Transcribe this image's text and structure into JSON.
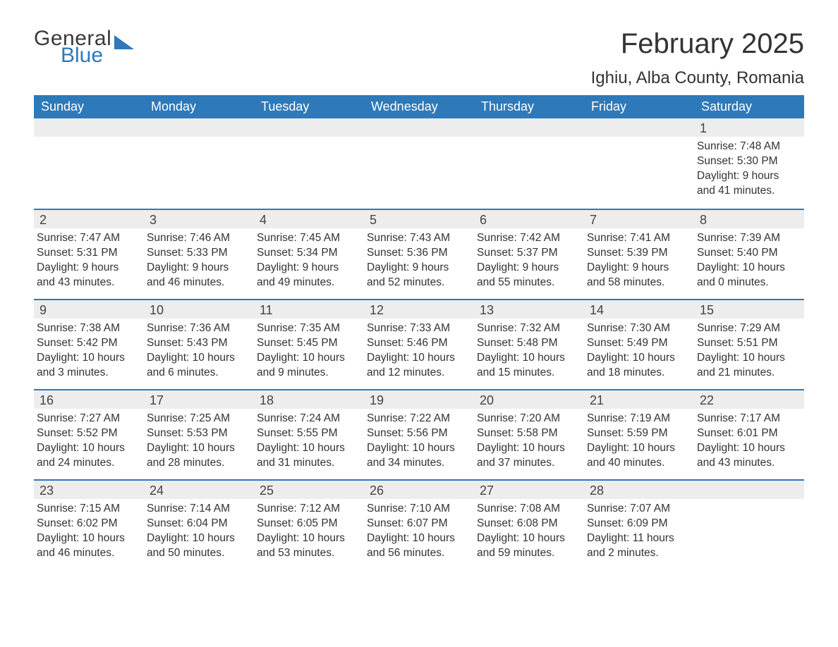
{
  "brand": {
    "word1": "General",
    "word2": "Blue"
  },
  "title": "February 2025",
  "location": "Ighiu, Alba County, Romania",
  "colors": {
    "header_bg": "#2e79b9",
    "header_text": "#ffffff",
    "daynum_bg": "#ededed",
    "row_divider": "#2e79b9",
    "body_text": "#333333",
    "page_bg": "#ffffff"
  },
  "typography": {
    "title_fontsize": 40,
    "location_fontsize": 24,
    "weekday_fontsize": 18,
    "daynum_fontsize": 18,
    "body_fontsize": 15.5
  },
  "weekdays": [
    "Sunday",
    "Monday",
    "Tuesday",
    "Wednesday",
    "Thursday",
    "Friday",
    "Saturday"
  ],
  "weeks": [
    [
      null,
      null,
      null,
      null,
      null,
      null,
      {
        "n": "1",
        "sunrise": "Sunrise: 7:48 AM",
        "sunset": "Sunset: 5:30 PM",
        "dl1": "Daylight: 9 hours",
        "dl2": "and 41 minutes."
      }
    ],
    [
      {
        "n": "2",
        "sunrise": "Sunrise: 7:47 AM",
        "sunset": "Sunset: 5:31 PM",
        "dl1": "Daylight: 9 hours",
        "dl2": "and 43 minutes."
      },
      {
        "n": "3",
        "sunrise": "Sunrise: 7:46 AM",
        "sunset": "Sunset: 5:33 PM",
        "dl1": "Daylight: 9 hours",
        "dl2": "and 46 minutes."
      },
      {
        "n": "4",
        "sunrise": "Sunrise: 7:45 AM",
        "sunset": "Sunset: 5:34 PM",
        "dl1": "Daylight: 9 hours",
        "dl2": "and 49 minutes."
      },
      {
        "n": "5",
        "sunrise": "Sunrise: 7:43 AM",
        "sunset": "Sunset: 5:36 PM",
        "dl1": "Daylight: 9 hours",
        "dl2": "and 52 minutes."
      },
      {
        "n": "6",
        "sunrise": "Sunrise: 7:42 AM",
        "sunset": "Sunset: 5:37 PM",
        "dl1": "Daylight: 9 hours",
        "dl2": "and 55 minutes."
      },
      {
        "n": "7",
        "sunrise": "Sunrise: 7:41 AM",
        "sunset": "Sunset: 5:39 PM",
        "dl1": "Daylight: 9 hours",
        "dl2": "and 58 minutes."
      },
      {
        "n": "8",
        "sunrise": "Sunrise: 7:39 AM",
        "sunset": "Sunset: 5:40 PM",
        "dl1": "Daylight: 10 hours",
        "dl2": "and 0 minutes."
      }
    ],
    [
      {
        "n": "9",
        "sunrise": "Sunrise: 7:38 AM",
        "sunset": "Sunset: 5:42 PM",
        "dl1": "Daylight: 10 hours",
        "dl2": "and 3 minutes."
      },
      {
        "n": "10",
        "sunrise": "Sunrise: 7:36 AM",
        "sunset": "Sunset: 5:43 PM",
        "dl1": "Daylight: 10 hours",
        "dl2": "and 6 minutes."
      },
      {
        "n": "11",
        "sunrise": "Sunrise: 7:35 AM",
        "sunset": "Sunset: 5:45 PM",
        "dl1": "Daylight: 10 hours",
        "dl2": "and 9 minutes."
      },
      {
        "n": "12",
        "sunrise": "Sunrise: 7:33 AM",
        "sunset": "Sunset: 5:46 PM",
        "dl1": "Daylight: 10 hours",
        "dl2": "and 12 minutes."
      },
      {
        "n": "13",
        "sunrise": "Sunrise: 7:32 AM",
        "sunset": "Sunset: 5:48 PM",
        "dl1": "Daylight: 10 hours",
        "dl2": "and 15 minutes."
      },
      {
        "n": "14",
        "sunrise": "Sunrise: 7:30 AM",
        "sunset": "Sunset: 5:49 PM",
        "dl1": "Daylight: 10 hours",
        "dl2": "and 18 minutes."
      },
      {
        "n": "15",
        "sunrise": "Sunrise: 7:29 AM",
        "sunset": "Sunset: 5:51 PM",
        "dl1": "Daylight: 10 hours",
        "dl2": "and 21 minutes."
      }
    ],
    [
      {
        "n": "16",
        "sunrise": "Sunrise: 7:27 AM",
        "sunset": "Sunset: 5:52 PM",
        "dl1": "Daylight: 10 hours",
        "dl2": "and 24 minutes."
      },
      {
        "n": "17",
        "sunrise": "Sunrise: 7:25 AM",
        "sunset": "Sunset: 5:53 PM",
        "dl1": "Daylight: 10 hours",
        "dl2": "and 28 minutes."
      },
      {
        "n": "18",
        "sunrise": "Sunrise: 7:24 AM",
        "sunset": "Sunset: 5:55 PM",
        "dl1": "Daylight: 10 hours",
        "dl2": "and 31 minutes."
      },
      {
        "n": "19",
        "sunrise": "Sunrise: 7:22 AM",
        "sunset": "Sunset: 5:56 PM",
        "dl1": "Daylight: 10 hours",
        "dl2": "and 34 minutes."
      },
      {
        "n": "20",
        "sunrise": "Sunrise: 7:20 AM",
        "sunset": "Sunset: 5:58 PM",
        "dl1": "Daylight: 10 hours",
        "dl2": "and 37 minutes."
      },
      {
        "n": "21",
        "sunrise": "Sunrise: 7:19 AM",
        "sunset": "Sunset: 5:59 PM",
        "dl1": "Daylight: 10 hours",
        "dl2": "and 40 minutes."
      },
      {
        "n": "22",
        "sunrise": "Sunrise: 7:17 AM",
        "sunset": "Sunset: 6:01 PM",
        "dl1": "Daylight: 10 hours",
        "dl2": "and 43 minutes."
      }
    ],
    [
      {
        "n": "23",
        "sunrise": "Sunrise: 7:15 AM",
        "sunset": "Sunset: 6:02 PM",
        "dl1": "Daylight: 10 hours",
        "dl2": "and 46 minutes."
      },
      {
        "n": "24",
        "sunrise": "Sunrise: 7:14 AM",
        "sunset": "Sunset: 6:04 PM",
        "dl1": "Daylight: 10 hours",
        "dl2": "and 50 minutes."
      },
      {
        "n": "25",
        "sunrise": "Sunrise: 7:12 AM",
        "sunset": "Sunset: 6:05 PM",
        "dl1": "Daylight: 10 hours",
        "dl2": "and 53 minutes."
      },
      {
        "n": "26",
        "sunrise": "Sunrise: 7:10 AM",
        "sunset": "Sunset: 6:07 PM",
        "dl1": "Daylight: 10 hours",
        "dl2": "and 56 minutes."
      },
      {
        "n": "27",
        "sunrise": "Sunrise: 7:08 AM",
        "sunset": "Sunset: 6:08 PM",
        "dl1": "Daylight: 10 hours",
        "dl2": "and 59 minutes."
      },
      {
        "n": "28",
        "sunrise": "Sunrise: 7:07 AM",
        "sunset": "Sunset: 6:09 PM",
        "dl1": "Daylight: 11 hours",
        "dl2": "and 2 minutes."
      },
      null
    ]
  ]
}
